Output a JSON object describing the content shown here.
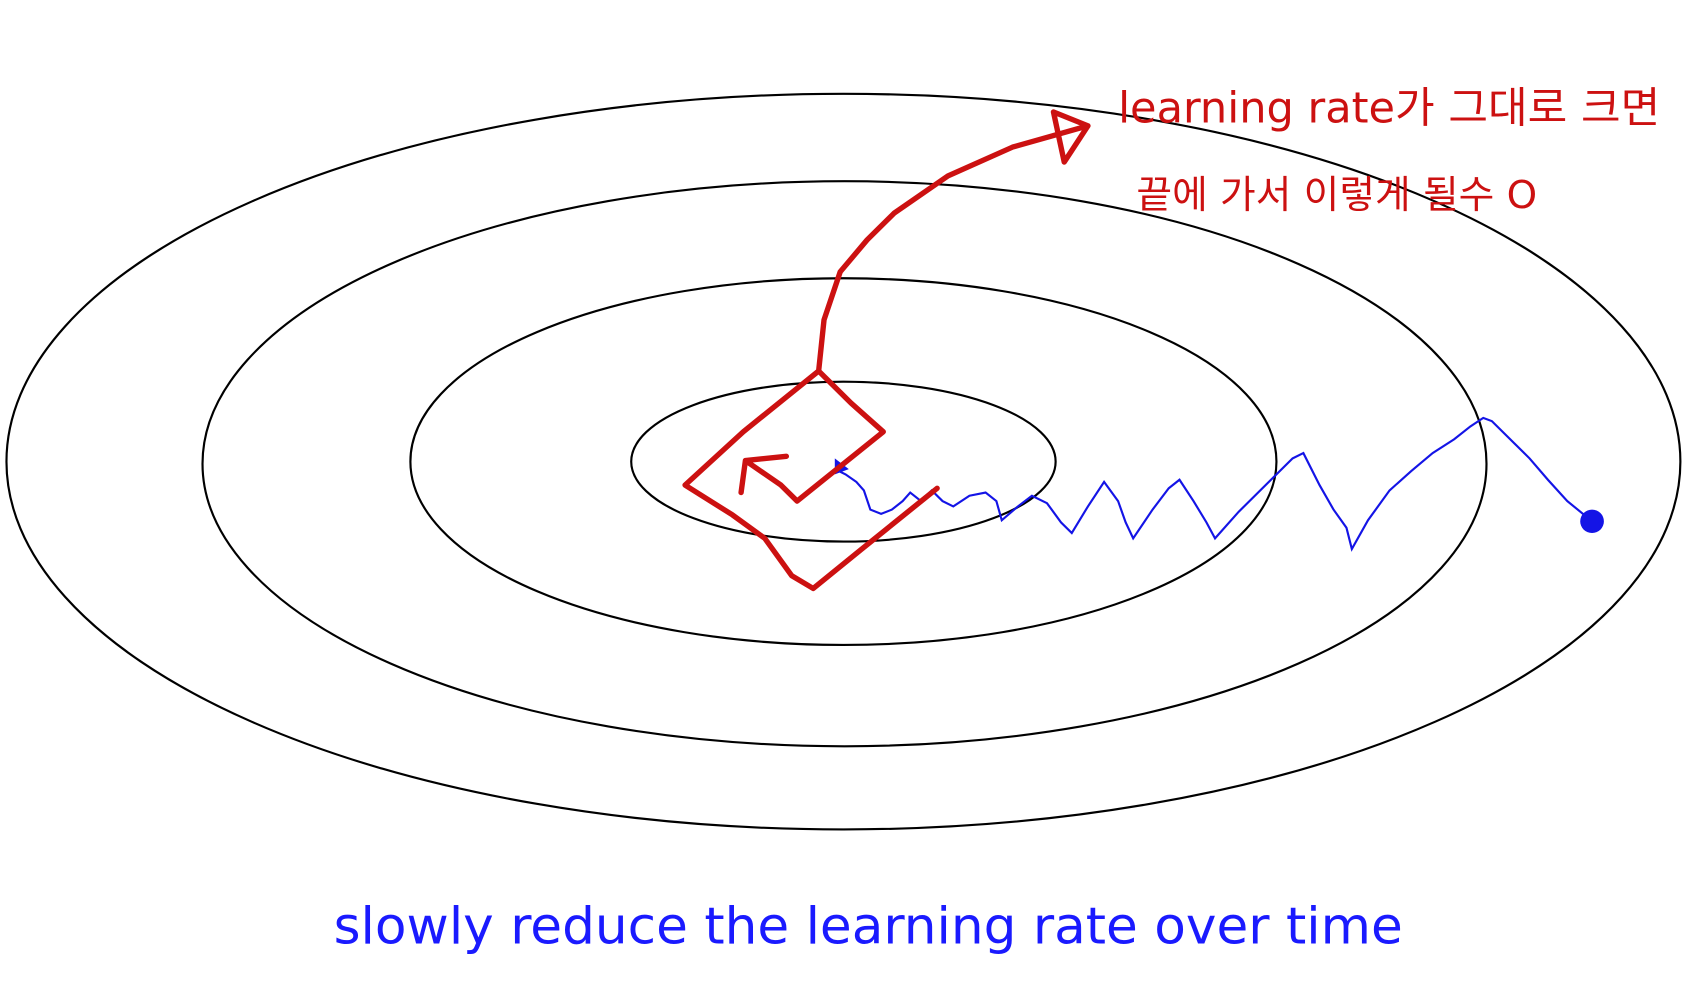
{
  "annotation": {
    "line1": "learning rate가 그대로 크면",
    "line2": "끝에 가서 이렇게 될수 O"
  },
  "caption": "slowly reduce the learning rate over time"
}
